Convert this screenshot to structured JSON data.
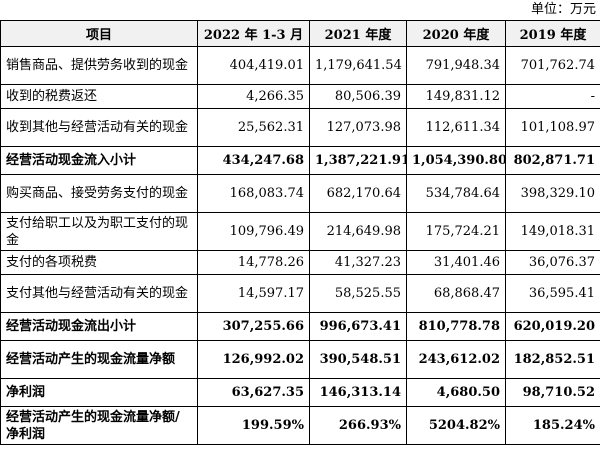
{
  "unit": "单位：万元",
  "table": {
    "headers": [
      "项目",
      "2022 年 1-3 月",
      "2021 年度",
      "2020 年度",
      "2019 年度"
    ],
    "rows": [
      {
        "label": "销售商品、提供劳务收到的现金",
        "values": [
          "404,419.01",
          "1,179,641.54",
          "791,948.34",
          "701,762.74"
        ],
        "bold": false
      },
      {
        "label": "收到的税费返还",
        "values": [
          "4,266.35",
          "80,506.39",
          "149,831.12",
          "-"
        ],
        "bold": false
      },
      {
        "label": "收到其他与经营活动有关的现金",
        "values": [
          "25,562.31",
          "127,073.98",
          "112,611.34",
          "101,108.97"
        ],
        "bold": false
      },
      {
        "label": "经营活动现金流入小计",
        "values": [
          "434,247.68",
          "1,387,221.91",
          "1,054,390.80",
          "802,871.71"
        ],
        "bold": true
      },
      {
        "label": "购买商品、接受劳务支付的现金",
        "values": [
          "168,083.74",
          "682,170.64",
          "534,784.64",
          "398,329.10"
        ],
        "bold": false
      },
      {
        "label": "支付给职工以及为职工支付的现金",
        "values": [
          "109,796.49",
          "214,649.98",
          "175,724.21",
          "149,018.31"
        ],
        "bold": false
      },
      {
        "label": "支付的各项税费",
        "values": [
          "14,778.26",
          "41,327.23",
          "31,401.46",
          "36,076.37"
        ],
        "bold": false
      },
      {
        "label": "支付其他与经营活动有关的现金",
        "values": [
          "14,597.17",
          "58,525.55",
          "68,868.47",
          "36,595.41"
        ],
        "bold": false
      },
      {
        "label": "经营活动现金流出小计",
        "values": [
          "307,255.66",
          "996,673.41",
          "810,778.78",
          "620,019.20"
        ],
        "bold": true
      },
      {
        "label": "经营活动产生的现金流量净额",
        "values": [
          "126,992.02",
          "390,548.51",
          "243,612.02",
          "182,852.51"
        ],
        "bold": true
      },
      {
        "label": "净利润",
        "values": [
          "63,627.35",
          "146,313.14",
          "4,680.50",
          "98,710.52"
        ],
        "bold": true
      },
      {
        "label": "经营活动产生的现金流量净额/净利润",
        "values": [
          "199.59%",
          "266.93%",
          "5204.82%",
          "185.24%"
        ],
        "bold": true
      }
    ]
  }
}
